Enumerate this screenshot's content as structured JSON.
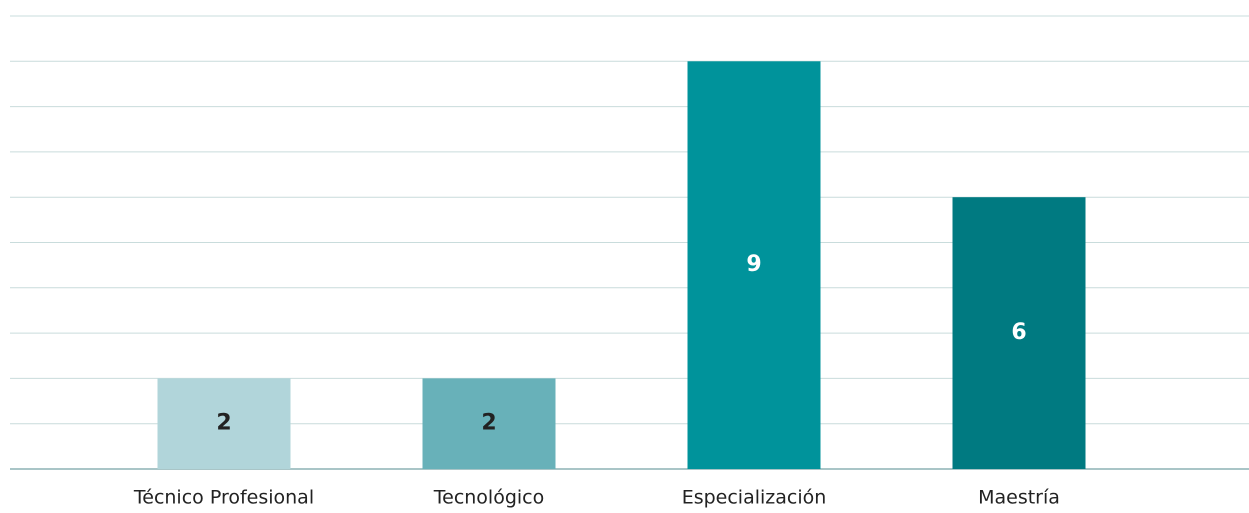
{
  "chart_data": {
    "type": "bar",
    "categories": [
      "Técnico Profesional",
      "Tecnológico",
      "Especialización",
      "Maestría"
    ],
    "values": [
      2,
      2,
      9,
      6
    ],
    "colors": [
      "#b1d5da",
      "#68b1b9",
      "#00939b",
      "#007a81"
    ],
    "value_label_colors": [
      "#222222",
      "#222222",
      "#ffffff",
      "#ffffff"
    ],
    "ylim": [
      0,
      10
    ],
    "yticks": [
      0,
      1,
      2,
      3,
      4,
      5,
      6,
      7,
      8,
      9,
      10
    ],
    "grid": true
  }
}
